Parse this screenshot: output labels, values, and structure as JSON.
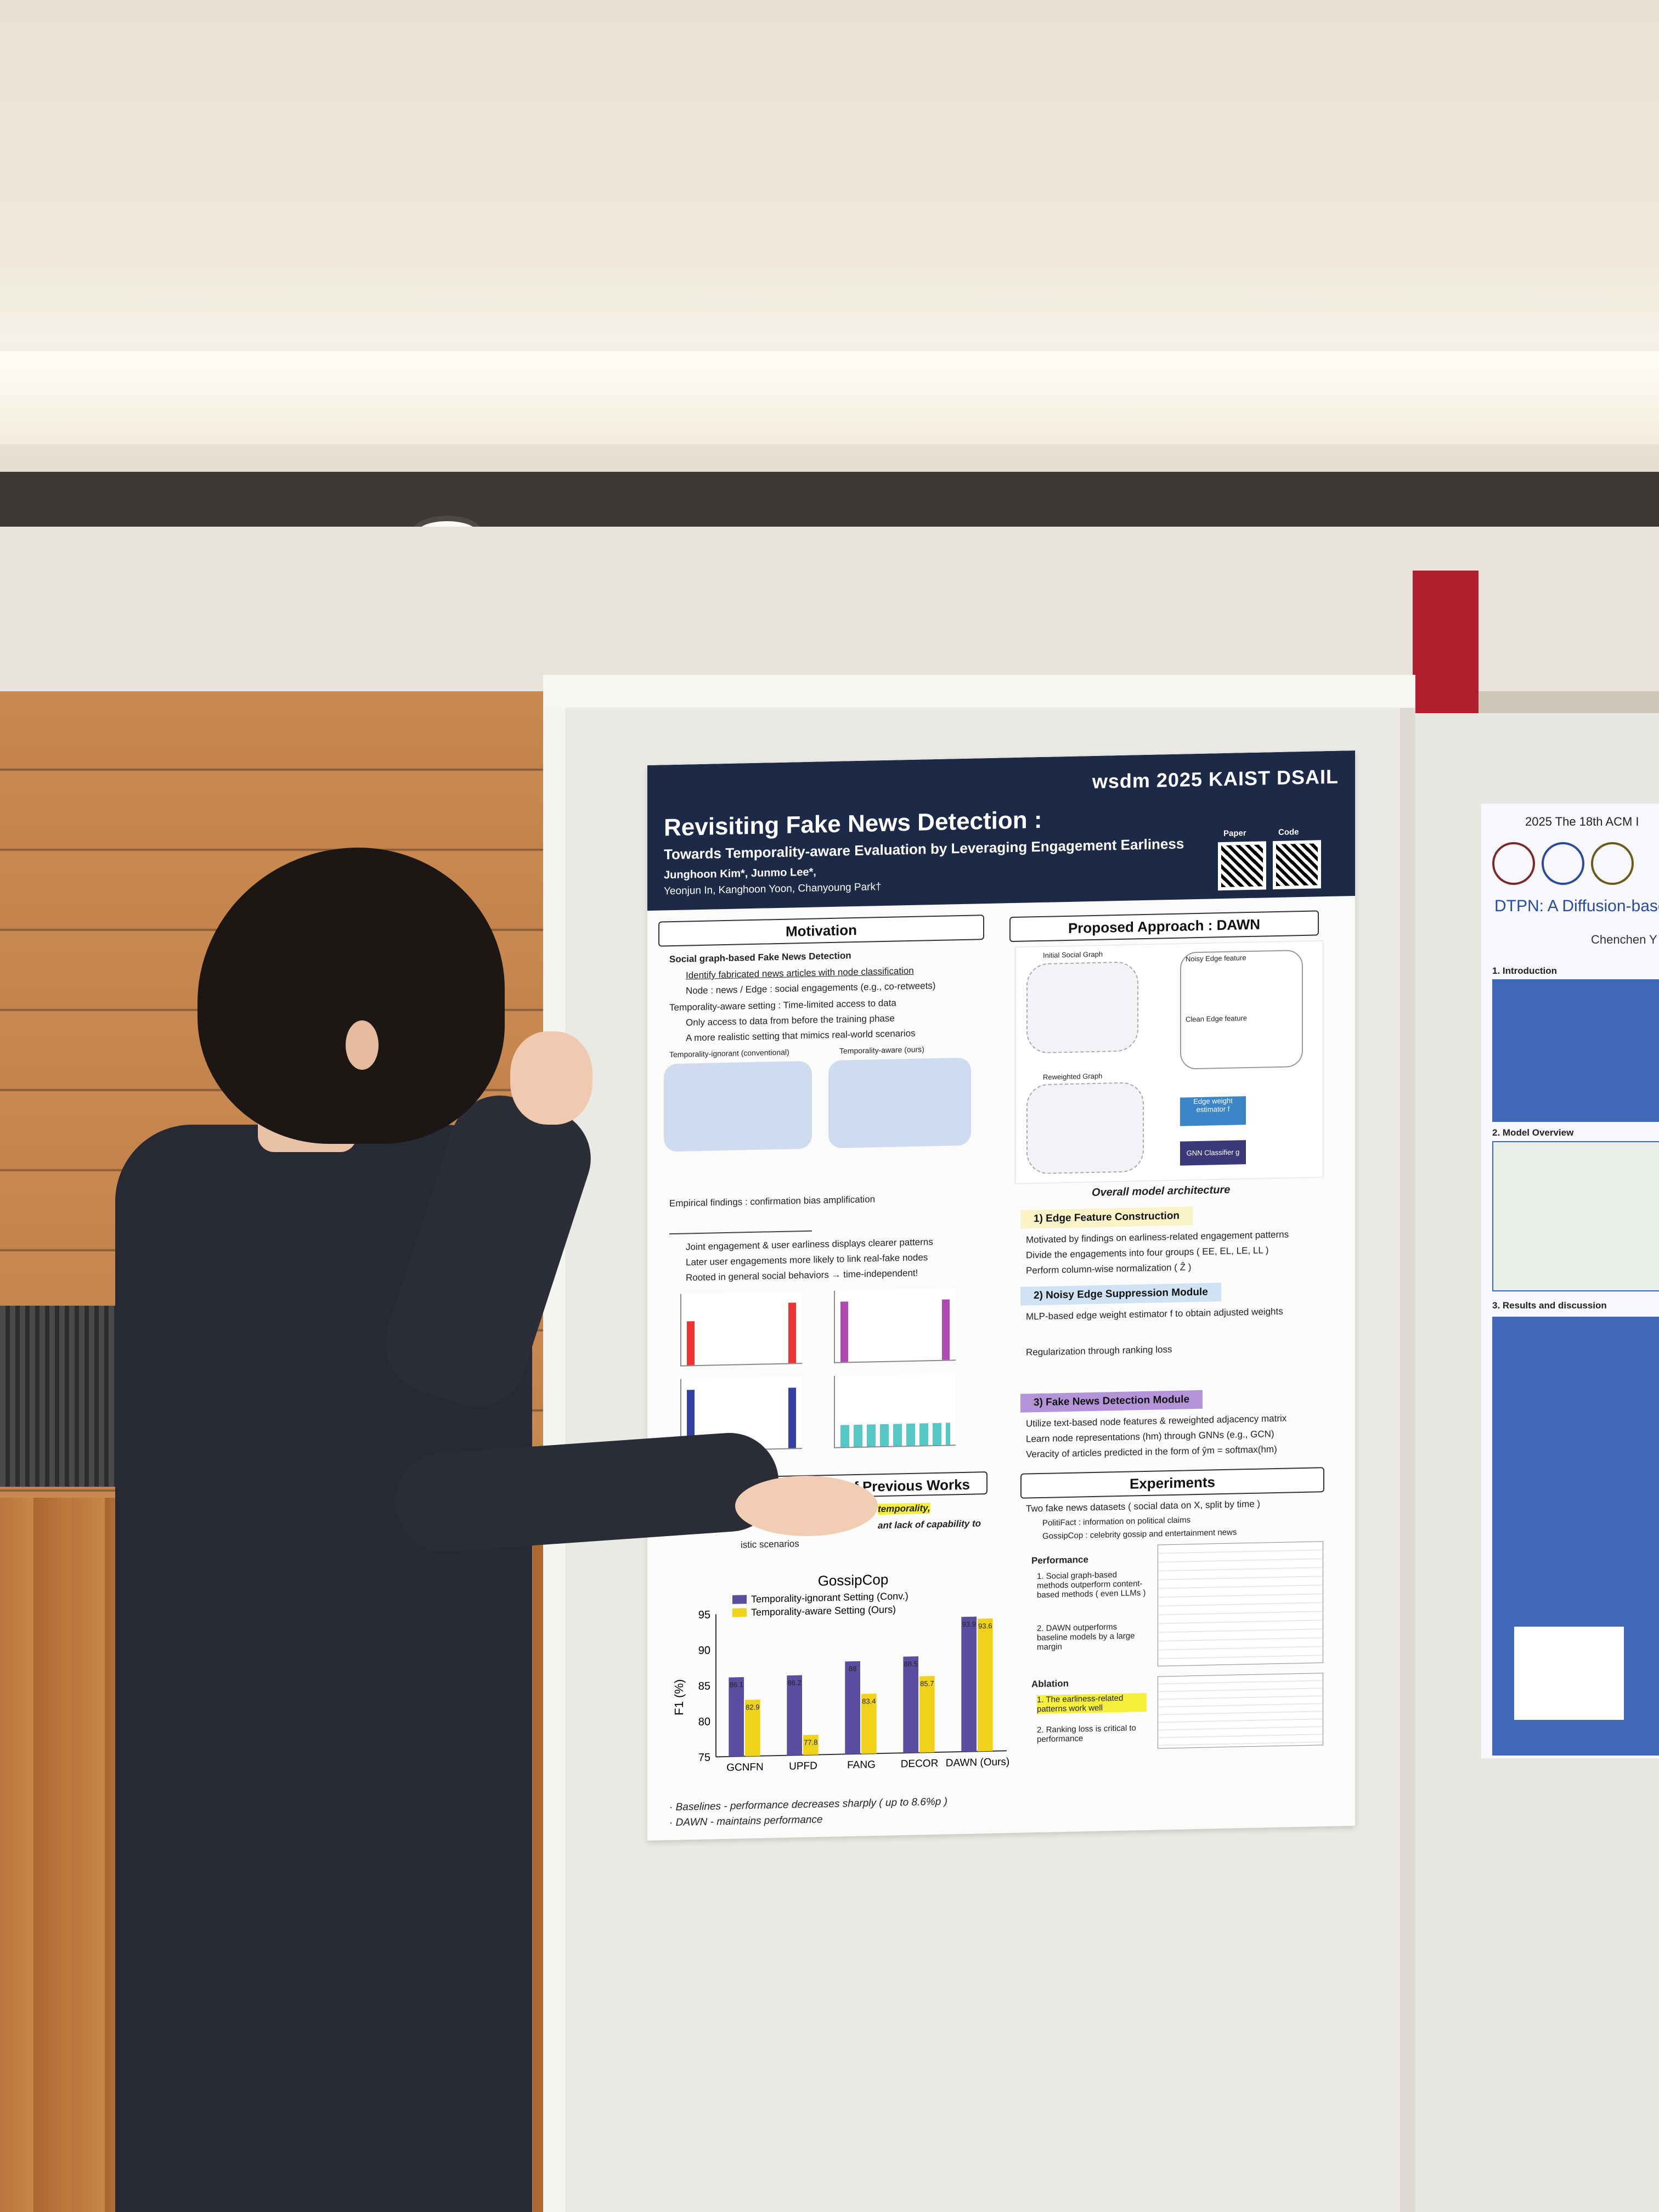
{
  "poster": {
    "logos": "wsdm 2025   KAIST  DSAIL",
    "title": "Revisiting Fake News Detection :",
    "subtitle": "Towards Temporality-aware Evaluation by Leveraging Engagement Earliness",
    "authors_line1": "Junghoon Kim*, Junmo Lee*,",
    "authors_line2": "Yeonjun In, Kanghoon Yoon, Chanyoung Park†",
    "qr_paper": "Paper",
    "qr_code": "Code",
    "motivation": {
      "header": "Motivation",
      "lines": [
        "Social graph-based Fake News Detection",
        "Identify fabricated news articles with node classification",
        "Node : news / Edge : social engagements (e.g., co-retweets)",
        "Temporality-aware setting : Time-limited access to data",
        "Only access to data from before the training phase",
        "A more realistic setting that mimics real-world scenarios"
      ],
      "fig_label_left": "Temporality-ignorant (conventional)",
      "fig_label_right": "Temporality-aware (ours)",
      "findings": [
        "Empirical findings : confirmation bias amplification",
        "Joint engagement & user earliness displays clearer patterns",
        "Later user engagements more likely to link real-fake nodes",
        "Rooted in general social behaviors → time-independent!"
      ]
    },
    "previous": {
      "header": "of Previous Works",
      "line1": "temporality,",
      "line2": "ant lack of capability to",
      "line3": "istic scenarios"
    },
    "approach": {
      "header": "Proposed Approach : DAWN",
      "arch_caption": "Overall model architecture",
      "labels": [
        "Initial Social Graph",
        "Noisy Edge feature",
        "Clean Edge feature",
        "Reweighted Graph",
        "Edge weight estimator f",
        "GNN Classifier g"
      ],
      "step1": "1) Edge Feature Construction",
      "step1_lines": [
        "Motivated by findings on earliness-related engagement patterns",
        "Divide the engagements into four groups ( EE, EL, LE, LL )",
        "Perform column-wise normalization ( Ẑ )"
      ],
      "step2": "2) Noisy Edge Suppression Module",
      "step2_lines": [
        "MLP-based edge weight estimator f to obtain adjusted weights",
        "Regularization through ranking loss"
      ],
      "step3": "3) Fake News Detection Module",
      "step3_lines": [
        "Utilize text-based node features & reweighted adjacency matrix",
        "Learn node representations (hm) through GNNs (e.g., GCN)",
        "Veracity of articles predicted in the form of ŷm = softmax(hm)"
      ]
    },
    "experiments": {
      "header": "Experiments",
      "lines": [
        "Two fake news datasets ( social data on X, split by time )",
        "PolitiFact : information on political claims",
        "GossipCop : celebrity gossip and entertainment news"
      ],
      "performance": "Performance",
      "perf_lines": [
        "1. Social graph-based methods outperform content-based methods ( even LLMs )",
        "2. DAWN outperforms baseline models by a large margin"
      ],
      "ablation": "Ablation",
      "abl_lines": [
        "1. The earliness-related patterns work well",
        "2. Ranking loss is critical to performance"
      ]
    },
    "notes": [
      "· Baselines - performance decreases sharply ( up to 8.6%p )",
      "· DAWN - maintains performance"
    ]
  },
  "chart_data": {
    "type": "bar",
    "title": "GossipCop",
    "ylabel": "F1 (%)",
    "ylim": [
      75,
      95
    ],
    "yticks": [
      75,
      80,
      85,
      90,
      95
    ],
    "categories": [
      "GCNFN",
      "UPFD",
      "FANG",
      "DECOR",
      "DAWN (Ours)"
    ],
    "series": [
      {
        "name": "Temporality-ignorant Setting (Conv.)",
        "color": "#5b4ea0",
        "values": [
          86.1,
          86.2,
          88.0,
          88.5,
          93.9
        ]
      },
      {
        "name": "Temporality-aware Setting (Ours)",
        "color": "#f0d21a",
        "values": [
          82.9,
          77.8,
          83.4,
          85.7,
          93.6
        ]
      }
    ]
  },
  "neighbor_poster": {
    "conference": "2025 The 18th ACM I",
    "title": "DTPN: A Diffusion-based",
    "author": "Chenchen Y",
    "sections": [
      "1. Introduction",
      "2. Model Overview",
      "3. Results and discussion"
    ]
  }
}
